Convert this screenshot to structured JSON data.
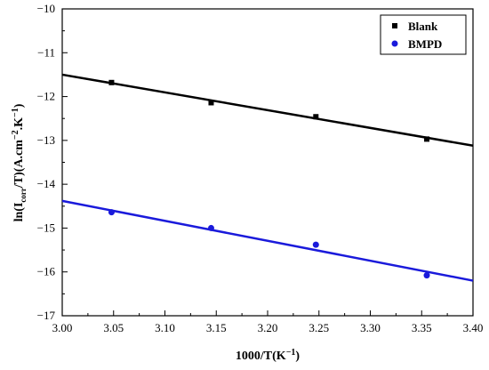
{
  "chart_data": {
    "type": "scatter",
    "xlabel": {
      "main": "1000/T(K",
      "sup": "−1",
      "end": ")"
    },
    "ylabel": {
      "p1": "ln(I",
      "sub": "corr",
      "p2": "/T)(A.cm",
      "sup1": "−2",
      "p3": ".K",
      "sup2": "−1",
      "p4": ")"
    },
    "xlim": [
      3.0,
      3.4
    ],
    "ylim": [
      -17,
      -10
    ],
    "x_ticks": [
      3.0,
      3.05,
      3.1,
      3.15,
      3.2,
      3.25,
      3.3,
      3.35,
      3.4
    ],
    "x_tick_labels": [
      "3.00",
      "3.05",
      "3.10",
      "3.15",
      "3.20",
      "3.25",
      "3.30",
      "3.35",
      "3.40"
    ],
    "y_ticks": [
      -17,
      -16,
      -15,
      -14,
      -13,
      -12,
      -11,
      -10
    ],
    "y_tick_labels": [
      "−17",
      "−16",
      "−15",
      "−14",
      "−13",
      "−12",
      "−11",
      "−10"
    ],
    "grid": false,
    "legend_position": "top-right",
    "series": [
      {
        "name": "Blank",
        "color": "#000000",
        "marker": "square",
        "points": [
          {
            "x": 3.048,
            "y": -11.68
          },
          {
            "x": 3.145,
            "y": -12.14
          },
          {
            "x": 3.247,
            "y": -12.46
          },
          {
            "x": 3.355,
            "y": -12.97
          }
        ],
        "fit_line": {
          "x": [
            3.0,
            3.4
          ],
          "y": [
            -11.5,
            -13.12
          ]
        }
      },
      {
        "name": "BMPD",
        "color": "#1a1adb",
        "marker": "circle",
        "points": [
          {
            "x": 3.048,
            "y": -14.64
          },
          {
            "x": 3.145,
            "y": -15.0
          },
          {
            "x": 3.247,
            "y": -15.38
          },
          {
            "x": 3.355,
            "y": -16.08
          }
        ],
        "fit_line": {
          "x": [
            3.0,
            3.4
          ],
          "y": [
            -14.38,
            -16.2
          ]
        }
      }
    ]
  }
}
